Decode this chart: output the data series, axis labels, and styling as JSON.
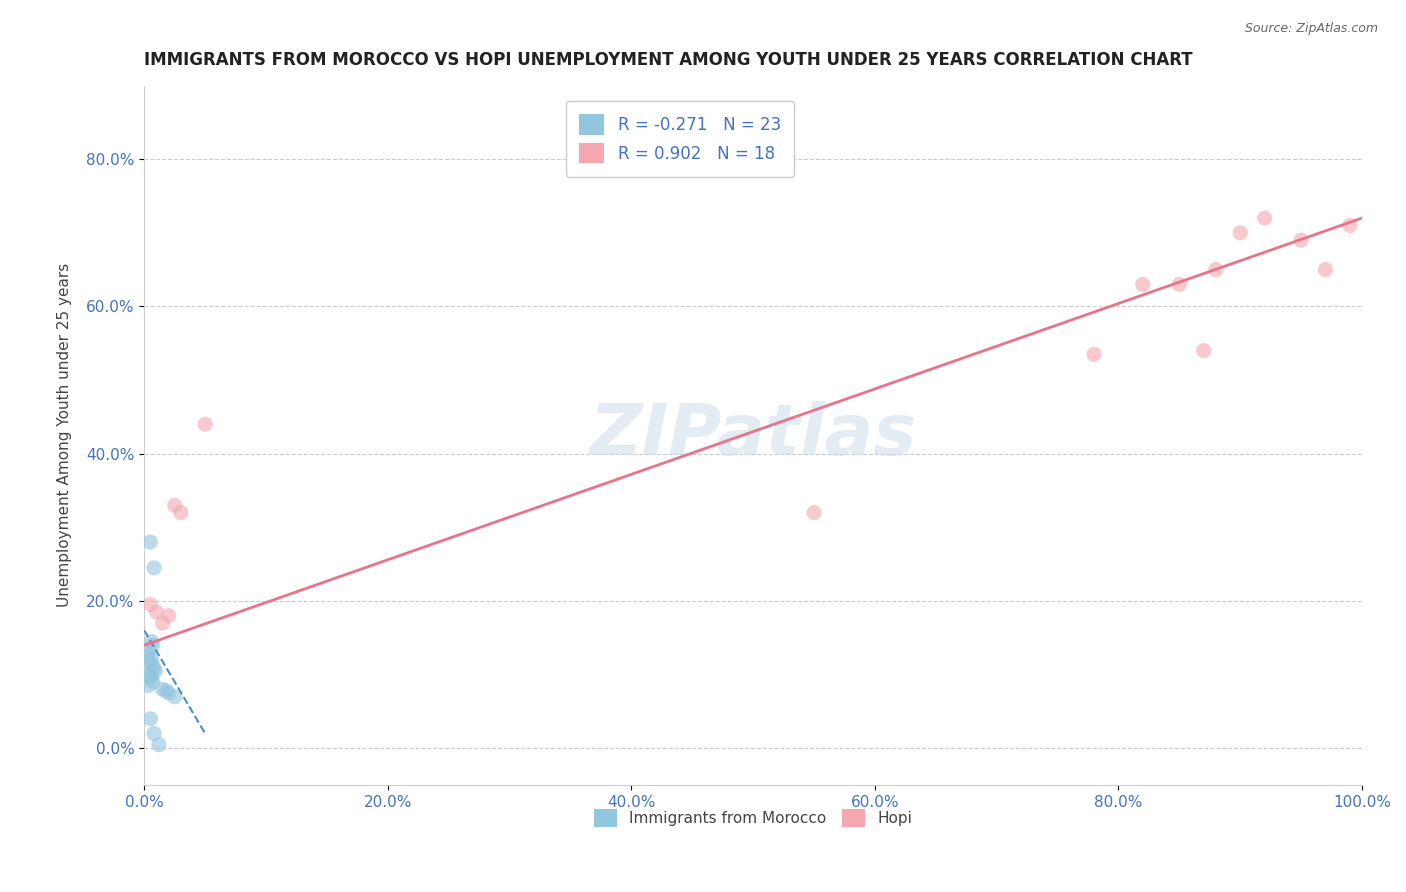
{
  "title": "IMMIGRANTS FROM MOROCCO VS HOPI UNEMPLOYMENT AMONG YOUTH UNDER 25 YEARS CORRELATION CHART",
  "source": "Source: ZipAtlas.com",
  "xlabel": "",
  "ylabel": "Unemployment Among Youth under 25 years",
  "xlim": [
    0.0,
    1.0
  ],
  "ylim": [
    -0.05,
    0.9
  ],
  "xticks": [
    0.0,
    0.2,
    0.4,
    0.6,
    0.8,
    1.0
  ],
  "xticklabels": [
    "0.0%",
    "20.0%",
    "40.0%",
    "60.0%",
    "80.0%",
    "100.0%"
  ],
  "yticks": [
    0.0,
    0.2,
    0.4,
    0.6,
    0.8
  ],
  "yticklabels": [
    "0.0%",
    "20.0%",
    "40.0%",
    "60.0%",
    "80.0%"
  ],
  "blue_scatter_x": [
    0.005,
    0.008,
    0.006,
    0.007,
    0.004,
    0.003,
    0.006,
    0.005,
    0.007,
    0.008,
    0.009,
    0.004,
    0.005,
    0.006,
    0.007,
    0.003,
    0.015,
    0.018,
    0.02,
    0.025,
    0.005,
    0.008,
    0.012
  ],
  "blue_scatter_y": [
    0.28,
    0.245,
    0.145,
    0.14,
    0.13,
    0.125,
    0.12,
    0.115,
    0.112,
    0.108,
    0.105,
    0.1,
    0.098,
    0.095,
    0.09,
    0.085,
    0.08,
    0.078,
    0.075,
    0.07,
    0.04,
    0.02,
    0.005
  ],
  "pink_scatter_x": [
    0.005,
    0.01,
    0.015,
    0.02,
    0.025,
    0.03,
    0.05,
    0.55,
    0.78,
    0.82,
    0.85,
    0.87,
    0.88,
    0.9,
    0.92,
    0.95,
    0.97,
    0.99
  ],
  "pink_scatter_y": [
    0.195,
    0.185,
    0.17,
    0.18,
    0.33,
    0.32,
    0.44,
    0.32,
    0.535,
    0.63,
    0.63,
    0.54,
    0.65,
    0.7,
    0.72,
    0.69,
    0.65,
    0.71
  ],
  "blue_line_x": [
    0.0,
    0.05
  ],
  "blue_line_y": [
    0.16,
    0.02
  ],
  "pink_line_x": [
    0.0,
    1.0
  ],
  "pink_line_y": [
    0.14,
    0.72
  ],
  "R_blue": -0.271,
  "N_blue": 23,
  "R_pink": 0.902,
  "N_pink": 18,
  "blue_color": "#92c5de",
  "pink_color": "#f4a7b0",
  "blue_line_color": "#4a90c4",
  "pink_line_color": "#e8738a",
  "scatter_size": 120,
  "alpha_scatter": 0.6,
  "grid_color": "#cccccc",
  "watermark": "ZIPatlas",
  "watermark_color": "#c8d8e8",
  "axis_color": "#4472c4",
  "legend_text_color": "#4472c4"
}
